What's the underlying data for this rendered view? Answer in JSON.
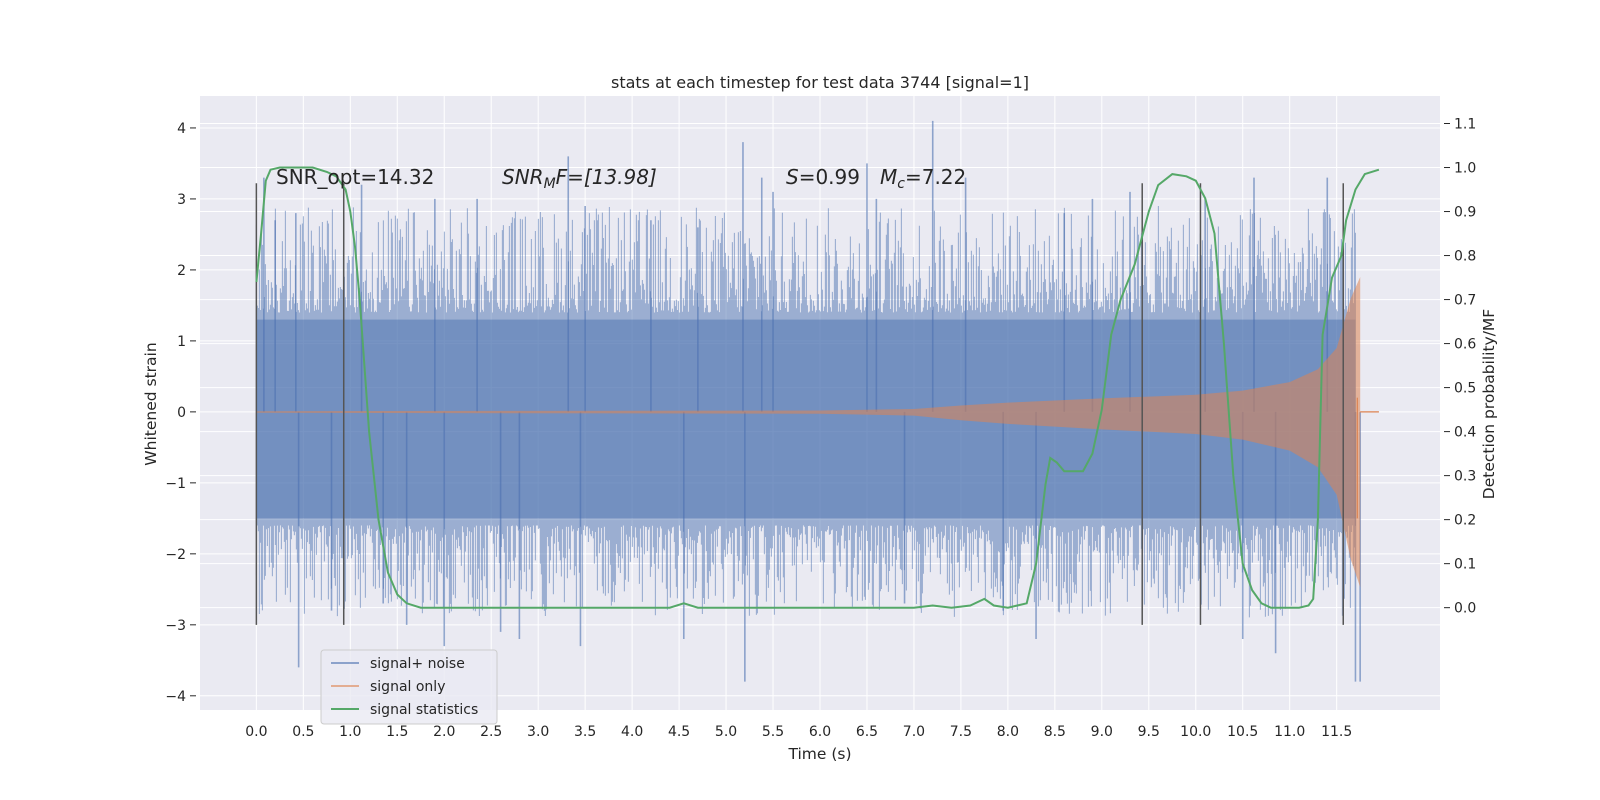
{
  "chart_data": {
    "type": "line",
    "title": "stats at each timestep for test data 3744 [signal=1]",
    "xlabel": "Time (s)",
    "ylabel": "Whitened strain",
    "y2label": "Detection probability/MF",
    "xlim": [
      -0.6,
      12.6
    ],
    "ylim": [
      -4.2,
      4.45
    ],
    "y2lim": [
      -0.2325,
      1.1625
    ],
    "x_ticks": [
      "0.0",
      "0.5",
      "1.0",
      "1.5",
      "2.0",
      "2.5",
      "3.0",
      "3.5",
      "4.0",
      "4.5",
      "5.0",
      "5.5",
      "6.0",
      "6.5",
      "7.0",
      "7.5",
      "8.0",
      "8.5",
      "9.0",
      "9.5",
      "10.0",
      "10.5",
      "11.0",
      "11.5"
    ],
    "y_ticks": [
      "4",
      "3",
      "2",
      "1",
      "0",
      "−1",
      "−2",
      "−3",
      "−4"
    ],
    "y2_ticks": [
      "1.1",
      "1.0",
      "0.9",
      "0.8",
      "0.7",
      "0.6",
      "0.5",
      "0.4",
      "0.3",
      "0.2",
      "0.1",
      "0.0"
    ],
    "grid": true,
    "legend_location": "lower-left",
    "colors": {
      "background": "#eaeaf2",
      "grid": "#ffffff",
      "noise": "#4c72b0",
      "signal": "#dd8452",
      "stats": "#55a868",
      "markers": "#555555"
    },
    "annotations": {
      "snr_opt": "SNR_opt=14.32",
      "snr_mf_label": "SNR",
      "snr_mf_sub": "M",
      "snr_mf_rest": "F=[13.98]",
      "s_label": "S",
      "s_rest": "=0.99",
      "mc_label": "M",
      "mc_sub": "c",
      "mc_rest": "=7.22"
    },
    "noise_envelope": {
      "x_range": [
        0.0,
        11.7
      ],
      "upper_typical": 1.4,
      "lower_typical": -1.6,
      "spikes": [
        {
          "x": 0.08,
          "y": 3.3
        },
        {
          "x": 0.2,
          "y": 2.7
        },
        {
          "x": 0.42,
          "y": 2.8
        },
        {
          "x": 0.45,
          "y": -3.6
        },
        {
          "x": 0.8,
          "y": -2.8
        },
        {
          "x": 1.12,
          "y": 3.2
        },
        {
          "x": 1.35,
          "y": -2.7
        },
        {
          "x": 1.6,
          "y": -3.0
        },
        {
          "x": 1.9,
          "y": 3.0
        },
        {
          "x": 2.0,
          "y": -3.3
        },
        {
          "x": 2.35,
          "y": 3.0
        },
        {
          "x": 2.6,
          "y": -3.1
        },
        {
          "x": 2.8,
          "y": -3.2
        },
        {
          "x": 3.32,
          "y": 3.6
        },
        {
          "x": 3.45,
          "y": -3.3
        },
        {
          "x": 3.5,
          "y": 2.9
        },
        {
          "x": 4.2,
          "y": 2.7
        },
        {
          "x": 4.55,
          "y": -3.2
        },
        {
          "x": 4.7,
          "y": 2.6
        },
        {
          "x": 5.18,
          "y": 3.8
        },
        {
          "x": 5.2,
          "y": -3.8
        },
        {
          "x": 5.38,
          "y": 3.3
        },
        {
          "x": 5.5,
          "y": 3.1
        },
        {
          "x": 6.5,
          "y": 3.5
        },
        {
          "x": 6.6,
          "y": 3.0
        },
        {
          "x": 6.9,
          "y": -2.7
        },
        {
          "x": 7.2,
          "y": 4.1
        },
        {
          "x": 7.55,
          "y": 3.3
        },
        {
          "x": 7.95,
          "y": -2.8
        },
        {
          "x": 8.3,
          "y": -3.2
        },
        {
          "x": 8.6,
          "y": 2.8
        },
        {
          "x": 8.9,
          "y": 3.0
        },
        {
          "x": 9.3,
          "y": 3.1
        },
        {
          "x": 10.1,
          "y": 3.0
        },
        {
          "x": 10.5,
          "y": -3.2
        },
        {
          "x": 10.62,
          "y": 3.3
        },
        {
          "x": 10.85,
          "y": -3.4
        },
        {
          "x": 11.4,
          "y": 3.3
        },
        {
          "x": 11.7,
          "y": -3.8
        },
        {
          "x": 11.75,
          "y": -3.8
        }
      ]
    },
    "signal_amplitude": [
      {
        "x": 0.0,
        "y": 0.01
      },
      {
        "x": 6.0,
        "y": 0.02
      },
      {
        "x": 7.0,
        "y": 0.04
      },
      {
        "x": 7.5,
        "y": 0.09
      },
      {
        "x": 8.0,
        "y": 0.13
      },
      {
        "x": 9.0,
        "y": 0.19
      },
      {
        "x": 10.0,
        "y": 0.24
      },
      {
        "x": 10.5,
        "y": 0.3
      },
      {
        "x": 11.0,
        "y": 0.42
      },
      {
        "x": 11.3,
        "y": 0.6
      },
      {
        "x": 11.5,
        "y": 0.9
      },
      {
        "x": 11.65,
        "y": 1.6
      },
      {
        "x": 11.75,
        "y": 1.9
      }
    ],
    "series": [
      {
        "name": "signal+ noise",
        "color": "#4c72b0",
        "axis": "left"
      },
      {
        "name": "signal only",
        "color": "#dd8452",
        "axis": "left"
      },
      {
        "name": "signal statistics",
        "color": "#55a868",
        "axis": "right",
        "x": [
          0.0,
          0.05,
          0.1,
          0.15,
          0.25,
          0.4,
          0.6,
          0.75,
          0.85,
          0.95,
          1.0,
          1.05,
          1.1,
          1.2,
          1.3,
          1.4,
          1.5,
          1.6,
          1.75,
          2.0,
          3.0,
          4.0,
          4.4,
          4.55,
          4.7,
          5.0,
          6.0,
          7.0,
          7.2,
          7.4,
          7.6,
          7.75,
          7.85,
          8.0,
          8.2,
          8.3,
          8.4,
          8.45,
          8.52,
          8.6,
          8.8,
          8.9,
          9.0,
          9.1,
          9.2,
          9.35,
          9.5,
          9.6,
          9.75,
          9.9,
          10.0,
          10.1,
          10.2,
          10.3,
          10.4,
          10.5,
          10.6,
          10.7,
          10.8,
          11.0,
          11.1,
          11.2,
          11.25,
          11.3,
          11.35,
          11.45,
          11.55,
          11.6,
          11.7,
          11.8,
          11.95
        ],
        "y": [
          0.74,
          0.85,
          0.97,
          0.995,
          1.0,
          1.0,
          1.0,
          0.99,
          0.98,
          0.95,
          0.9,
          0.82,
          0.7,
          0.4,
          0.2,
          0.08,
          0.03,
          0.01,
          0.0,
          0.0,
          0.0,
          0.0,
          0.0,
          0.01,
          0.0,
          0.0,
          0.0,
          0.0,
          0.005,
          0.0,
          0.005,
          0.02,
          0.005,
          0.0,
          0.01,
          0.1,
          0.28,
          0.34,
          0.33,
          0.31,
          0.31,
          0.35,
          0.45,
          0.62,
          0.7,
          0.78,
          0.9,
          0.96,
          0.985,
          0.98,
          0.97,
          0.93,
          0.85,
          0.6,
          0.3,
          0.1,
          0.04,
          0.01,
          0.0,
          0.0,
          0.0,
          0.005,
          0.02,
          0.2,
          0.62,
          0.75,
          0.8,
          0.88,
          0.95,
          0.985,
          0.995
        ]
      }
    ],
    "marker_lines": {
      "x": [
        0.0,
        0.93,
        9.43,
        10.05,
        11.57
      ],
      "y_range": [
        -3.0,
        3.22
      ]
    }
  }
}
